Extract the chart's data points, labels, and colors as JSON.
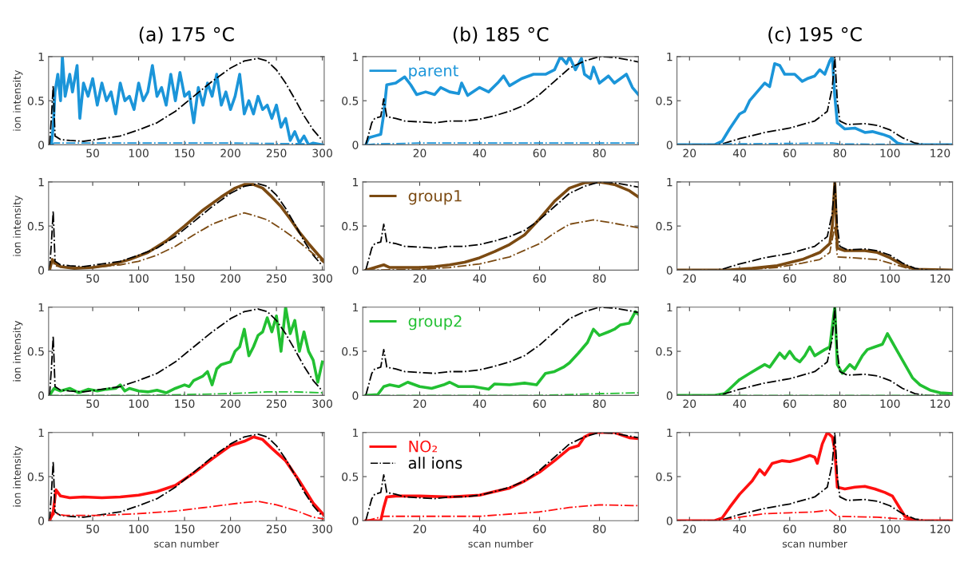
{
  "chart_data": [
    {
      "type": "line",
      "title": "(a) 175 °C",
      "ylabel": "ion intensity",
      "xlim": [
        2,
        302
      ],
      "xticks": [
        50,
        100,
        150,
        200,
        250,
        300
      ],
      "ylim": [
        0,
        1
      ],
      "yticks": [
        0,
        0.5,
        1
      ],
      "series": [
        {
          "color": "#1b95d9",
          "line_style": "solid",
          "x": [
            5,
            7,
            9,
            12,
            15,
            17,
            20,
            25,
            28,
            33,
            36,
            40,
            45,
            50,
            55,
            60,
            65,
            70,
            75,
            80,
            85,
            90,
            95,
            100,
            105,
            110,
            115,
            120,
            125,
            130,
            135,
            140,
            145,
            150,
            155,
            160,
            165,
            170,
            175,
            180,
            185,
            190,
            195,
            200,
            205,
            210,
            215,
            220,
            225,
            230,
            235,
            240,
            245,
            250,
            255,
            260,
            265,
            270,
            275,
            280,
            285,
            290,
            300
          ],
          "values": [
            0,
            0.2,
            0.6,
            0.8,
            0.5,
            1.0,
            0.55,
            0.8,
            0.6,
            0.9,
            0.3,
            0.7,
            0.55,
            0.75,
            0.45,
            0.7,
            0.5,
            0.6,
            0.35,
            0.7,
            0.5,
            0.55,
            0.4,
            0.7,
            0.5,
            0.6,
            0.9,
            0.55,
            0.65,
            0.45,
            0.8,
            0.5,
            0.82,
            0.55,
            0.6,
            0.25,
            0.65,
            0.45,
            0.7,
            0.55,
            0.8,
            0.45,
            0.6,
            0.4,
            0.55,
            0.8,
            0.35,
            0.5,
            0.35,
            0.55,
            0.4,
            0.45,
            0.3,
            0.45,
            0.2,
            0.3,
            0.05,
            0.15,
            0.02,
            0.1,
            0.0,
            0.02,
            0
          ]
        },
        {
          "color": "#000000",
          "line_style": "dashdot",
          "x": [
            3,
            5,
            7,
            9,
            15,
            25,
            40,
            60,
            80,
            100,
            120,
            140,
            160,
            180,
            200,
            215,
            230,
            240,
            250,
            260,
            270,
            280,
            290,
            300
          ],
          "values": [
            0,
            0.3,
            0.67,
            0.1,
            0.06,
            0.05,
            0.04,
            0.07,
            0.1,
            0.17,
            0.25,
            0.38,
            0.55,
            0.72,
            0.87,
            0.95,
            0.98,
            0.95,
            0.85,
            0.7,
            0.52,
            0.33,
            0.17,
            0.05
          ]
        },
        {
          "color": "#1b95d9",
          "line_style": "dashdot",
          "x": [
            5,
            8,
            100,
            200,
            300
          ],
          "values": [
            0,
            0.02,
            0.02,
            0.02,
            0.01
          ]
        }
      ]
    },
    {
      "type": "line",
      "title": "(b) 185 °C",
      "xlim": [
        1,
        93
      ],
      "xticks": [
        20,
        40,
        60,
        80
      ],
      "ylim": [
        0,
        1
      ],
      "yticks": [
        0,
        0.5,
        1
      ],
      "legend": "top left",
      "series": [
        {
          "name": "parent",
          "color": "#1b95d9",
          "line_style": "solid",
          "x": [
            2,
            3,
            5,
            7,
            8,
            9,
            12,
            15,
            17,
            19,
            22,
            25,
            27,
            30,
            33,
            34,
            36,
            40,
            43,
            46,
            48,
            50,
            54,
            58,
            62,
            65,
            67,
            69,
            70,
            72,
            74,
            75,
            77,
            78,
            80,
            83,
            85,
            87,
            89,
            91,
            93
          ],
          "values": [
            0,
            0.08,
            0.1,
            0.12,
            0.35,
            0.68,
            0.7,
            0.77,
            0.68,
            0.57,
            0.6,
            0.57,
            0.65,
            0.6,
            0.58,
            0.7,
            0.56,
            0.65,
            0.6,
            0.7,
            0.78,
            0.67,
            0.75,
            0.8,
            0.8,
            0.85,
            1.0,
            0.92,
            1.0,
            0.85,
            0.98,
            0.8,
            0.75,
            0.88,
            0.7,
            0.78,
            0.7,
            0.75,
            0.8,
            0.65,
            0.57
          ]
        },
        {
          "color": "#000000",
          "line_style": "dashdot",
          "x": [
            2,
            4,
            5,
            7,
            8,
            9,
            12,
            15,
            20,
            25,
            30,
            35,
            40,
            45,
            50,
            55,
            60,
            65,
            70,
            75,
            80,
            85,
            90,
            93
          ],
          "values": [
            0,
            0.25,
            0.3,
            0.32,
            0.52,
            0.32,
            0.3,
            0.27,
            0.26,
            0.25,
            0.27,
            0.27,
            0.29,
            0.33,
            0.38,
            0.45,
            0.57,
            0.72,
            0.87,
            0.95,
            1.0,
            0.99,
            0.96,
            0.94
          ]
        },
        {
          "color": "#1b95d9",
          "line_style": "dashdot",
          "x": [
            2,
            5,
            20,
            60,
            93
          ],
          "values": [
            0,
            0.01,
            0.02,
            0.02,
            0.02
          ]
        }
      ]
    },
    {
      "type": "line",
      "title": "(c) 195 °C",
      "xlim": [
        15,
        125
      ],
      "xticks": [
        20,
        40,
        60,
        80,
        100,
        120
      ],
      "ylim": [
        0,
        1
      ],
      "yticks": [
        0,
        0.5,
        1
      ],
      "series": [
        {
          "color": "#1b95d9",
          "line_style": "solid",
          "x": [
            15,
            30,
            33,
            36,
            40,
            42,
            44,
            47,
            50,
            52,
            54,
            56,
            58,
            62,
            65,
            67,
            70,
            72,
            74,
            76,
            77,
            78,
            79,
            82,
            86,
            90,
            93,
            97,
            100,
            103,
            106,
            125
          ],
          "values": [
            0,
            0,
            0.04,
            0.18,
            0.35,
            0.38,
            0.5,
            0.6,
            0.7,
            0.66,
            0.92,
            0.9,
            0.8,
            0.8,
            0.72,
            0.75,
            0.78,
            0.85,
            0.8,
            0.95,
            1.0,
            0.55,
            0.25,
            0.18,
            0.19,
            0.14,
            0.15,
            0.12,
            0.09,
            0.02,
            0,
            0
          ]
        },
        {
          "color": "#000000",
          "line_style": "dashdot",
          "x": [
            15,
            30,
            33,
            40,
            50,
            60,
            70,
            75,
            77,
            78,
            79,
            80,
            83,
            90,
            95,
            100,
            105,
            110,
            115,
            125
          ],
          "values": [
            0,
            0,
            0.01,
            0.07,
            0.14,
            0.19,
            0.27,
            0.38,
            0.65,
            1.0,
            0.5,
            0.27,
            0.23,
            0.24,
            0.22,
            0.17,
            0.08,
            0.02,
            0,
            0
          ]
        },
        {
          "color": "#1b95d9",
          "line_style": "dashdot",
          "x": [
            15,
            30,
            35,
            77,
            80,
            125
          ],
          "values": [
            0,
            0,
            0.01,
            0.02,
            0.01,
            0
          ]
        }
      ]
    },
    {
      "type": "line",
      "ylabel": "ion intensity",
      "xlim": [
        2,
        302
      ],
      "xticks": [
        50,
        100,
        150,
        200,
        250,
        300
      ],
      "ylim": [
        0,
        1
      ],
      "yticks": [
        0,
        0.5,
        1
      ],
      "series": [
        {
          "color": "#7b4a12",
          "line_style": "solid",
          "x": [
            3,
            6,
            9,
            15,
            30,
            50,
            70,
            90,
            110,
            130,
            150,
            170,
            190,
            205,
            215,
            225,
            235,
            245,
            255,
            265,
            275,
            285,
            295,
            302
          ],
          "values": [
            0,
            0.12,
            0.08,
            0.04,
            0.02,
            0.03,
            0.06,
            0.12,
            0.2,
            0.33,
            0.5,
            0.68,
            0.83,
            0.93,
            0.97,
            0.97,
            0.93,
            0.83,
            0.72,
            0.58,
            0.43,
            0.3,
            0.18,
            0.1
          ]
        },
        {
          "color": "#000000",
          "line_style": "dashdot",
          "x": [
            3,
            5,
            7,
            9,
            15,
            25,
            40,
            60,
            80,
            100,
            120,
            140,
            160,
            180,
            200,
            215,
            230,
            240,
            250,
            260,
            270,
            280,
            290,
            300
          ],
          "values": [
            0,
            0.3,
            0.67,
            0.1,
            0.06,
            0.05,
            0.04,
            0.07,
            0.1,
            0.17,
            0.25,
            0.38,
            0.55,
            0.72,
            0.87,
            0.95,
            0.98,
            0.95,
            0.85,
            0.7,
            0.52,
            0.33,
            0.17,
            0.05
          ]
        },
        {
          "color": "#7b4a12",
          "line_style": "dashdot",
          "x": [
            3,
            6,
            9,
            20,
            50,
            80,
            100,
            120,
            140,
            160,
            180,
            200,
            215,
            225,
            240,
            255,
            270,
            285,
            302
          ],
          "values": [
            0,
            0.1,
            0.05,
            0.03,
            0.03,
            0.06,
            0.1,
            0.17,
            0.27,
            0.4,
            0.52,
            0.6,
            0.65,
            0.62,
            0.57,
            0.47,
            0.36,
            0.23,
            0.08
          ]
        }
      ]
    },
    {
      "type": "line",
      "xlim": [
        1,
        93
      ],
      "xticks": [
        20,
        40,
        60,
        80
      ],
      "ylim": [
        0,
        1
      ],
      "yticks": [
        0,
        0.5,
        1
      ],
      "legend": "top left",
      "series": [
        {
          "name": "group1",
          "color": "#7b4a12",
          "line_style": "solid",
          "x": [
            2,
            4,
            8,
            10,
            20,
            25,
            30,
            35,
            40,
            45,
            50,
            55,
            60,
            65,
            70,
            75,
            80,
            85,
            90,
            93
          ],
          "values": [
            0,
            0.02,
            0.06,
            0.03,
            0.03,
            0.04,
            0.06,
            0.09,
            0.14,
            0.21,
            0.29,
            0.4,
            0.58,
            0.78,
            0.93,
            0.99,
            1.0,
            0.97,
            0.9,
            0.83
          ]
        },
        {
          "color": "#000000",
          "line_style": "dashdot",
          "x": [
            2,
            4,
            5,
            7,
            8,
            9,
            12,
            15,
            20,
            25,
            30,
            35,
            40,
            45,
            50,
            55,
            60,
            65,
            70,
            75,
            80,
            85,
            90,
            93
          ],
          "values": [
            0,
            0.25,
            0.3,
            0.32,
            0.52,
            0.32,
            0.3,
            0.27,
            0.26,
            0.25,
            0.27,
            0.27,
            0.29,
            0.33,
            0.38,
            0.45,
            0.57,
            0.72,
            0.87,
            0.95,
            1.0,
            0.99,
            0.96,
            0.94
          ]
        },
        {
          "color": "#7b4a12",
          "line_style": "dashdot",
          "x": [
            2,
            20,
            30,
            40,
            50,
            60,
            65,
            70,
            78,
            85,
            93
          ],
          "values": [
            0,
            0.01,
            0.03,
            0.07,
            0.15,
            0.3,
            0.42,
            0.52,
            0.57,
            0.53,
            0.48
          ]
        }
      ]
    },
    {
      "type": "line",
      "xlim": [
        15,
        125
      ],
      "xticks": [
        20,
        40,
        60,
        80,
        100,
        120
      ],
      "ylim": [
        0,
        1
      ],
      "yticks": [
        0,
        0.5,
        1
      ],
      "series": [
        {
          "color": "#7b4a12",
          "line_style": "solid",
          "x": [
            15,
            35,
            45,
            55,
            65,
            72,
            76,
            77,
            78,
            79,
            82,
            90,
            95,
            100,
            105,
            110,
            125
          ],
          "values": [
            0,
            0,
            0.02,
            0.05,
            0.12,
            0.2,
            0.3,
            0.5,
            1.0,
            0.25,
            0.22,
            0.22,
            0.2,
            0.14,
            0.06,
            0.01,
            0
          ]
        },
        {
          "color": "#000000",
          "line_style": "dashdot",
          "x": [
            15,
            30,
            33,
            40,
            50,
            60,
            70,
            75,
            77,
            78,
            79,
            80,
            83,
            90,
            95,
            100,
            105,
            110,
            115,
            125
          ],
          "values": [
            0,
            0,
            0.01,
            0.07,
            0.14,
            0.19,
            0.27,
            0.38,
            0.65,
            1.0,
            0.5,
            0.27,
            0.23,
            0.24,
            0.22,
            0.17,
            0.08,
            0.02,
            0,
            0
          ]
        },
        {
          "color": "#7b4a12",
          "line_style": "dashdot",
          "x": [
            15,
            40,
            55,
            65,
            72,
            76,
            78,
            79,
            85,
            95,
            100,
            106,
            110,
            125
          ],
          "values": [
            0,
            0,
            0.03,
            0.08,
            0.12,
            0.2,
            0.5,
            0.15,
            0.14,
            0.12,
            0.08,
            0.03,
            0,
            0
          ]
        }
      ]
    },
    {
      "type": "line",
      "ylabel": "ion intensity",
      "xlim": [
        2,
        302
      ],
      "xticks": [
        50,
        100,
        150,
        200,
        250,
        300
      ],
      "ylim": [
        0,
        1
      ],
      "yticks": [
        0,
        0.5,
        1
      ],
      "series": [
        {
          "color": "#22c032",
          "line_style": "solid",
          "x": [
            3,
            8,
            15,
            25,
            35,
            45,
            55,
            65,
            75,
            80,
            85,
            90,
            100,
            110,
            120,
            130,
            140,
            150,
            155,
            160,
            170,
            175,
            180,
            185,
            190,
            200,
            205,
            210,
            215,
            220,
            225,
            230,
            235,
            240,
            245,
            250,
            255,
            260,
            265,
            270,
            275,
            280,
            285,
            290,
            295,
            300
          ],
          "values": [
            0,
            0.08,
            0.05,
            0.08,
            0.03,
            0.07,
            0.05,
            0.07,
            0.08,
            0.12,
            0.05,
            0.08,
            0.05,
            0.04,
            0.06,
            0.03,
            0.08,
            0.12,
            0.1,
            0.17,
            0.22,
            0.27,
            0.12,
            0.3,
            0.35,
            0.38,
            0.5,
            0.55,
            0.75,
            0.45,
            0.55,
            0.68,
            0.72,
            0.88,
            0.72,
            0.9,
            0.5,
            1.0,
            0.7,
            0.85,
            0.5,
            0.72,
            0.5,
            0.4,
            0.15,
            0.38
          ]
        },
        {
          "color": "#000000",
          "line_style": "dashdot",
          "x": [
            3,
            5,
            7,
            9,
            15,
            25,
            40,
            60,
            80,
            100,
            120,
            140,
            160,
            180,
            200,
            215,
            230,
            240,
            250,
            260,
            270,
            280,
            290,
            300
          ],
          "values": [
            0,
            0.3,
            0.67,
            0.1,
            0.06,
            0.05,
            0.04,
            0.07,
            0.1,
            0.17,
            0.25,
            0.38,
            0.55,
            0.72,
            0.87,
            0.95,
            0.98,
            0.95,
            0.85,
            0.7,
            0.52,
            0.33,
            0.17,
            0.05
          ]
        },
        {
          "color": "#22c032",
          "line_style": "dashdot",
          "x": [
            3,
            100,
            150,
            200,
            240,
            270,
            300
          ],
          "values": [
            0,
            0,
            0.01,
            0.02,
            0.04,
            0.04,
            0.03
          ]
        }
      ]
    },
    {
      "type": "line",
      "xlim": [
        1,
        93
      ],
      "xticks": [
        20,
        40,
        60,
        80
      ],
      "ylim": [
        0,
        1
      ],
      "yticks": [
        0,
        0.5,
        1
      ],
      "legend": "top left",
      "series": [
        {
          "name": "group2",
          "color": "#22c032",
          "line_style": "solid",
          "x": [
            2,
            6,
            8,
            10,
            13,
            16,
            20,
            24,
            28,
            30,
            33,
            38,
            43,
            45,
            50,
            55,
            59,
            62,
            65,
            68,
            70,
            73,
            76,
            78,
            80,
            83,
            85,
            87,
            90,
            92,
            93
          ],
          "values": [
            0,
            0.01,
            0.1,
            0.12,
            0.1,
            0.15,
            0.1,
            0.08,
            0.12,
            0.15,
            0.1,
            0.1,
            0.07,
            0.13,
            0.12,
            0.14,
            0.12,
            0.25,
            0.27,
            0.32,
            0.37,
            0.48,
            0.6,
            0.75,
            0.68,
            0.72,
            0.75,
            0.8,
            0.82,
            0.95,
            0.92
          ]
        },
        {
          "color": "#000000",
          "line_style": "dashdot",
          "x": [
            2,
            4,
            5,
            7,
            8,
            9,
            12,
            15,
            20,
            25,
            30,
            35,
            40,
            45,
            50,
            55,
            60,
            65,
            70,
            75,
            80,
            85,
            90,
            93
          ],
          "values": [
            0,
            0.25,
            0.3,
            0.32,
            0.52,
            0.32,
            0.3,
            0.27,
            0.26,
            0.25,
            0.27,
            0.27,
            0.29,
            0.33,
            0.38,
            0.45,
            0.57,
            0.72,
            0.87,
            0.95,
            1.0,
            0.99,
            0.96,
            0.94
          ]
        },
        {
          "color": "#22c032",
          "line_style": "dashdot",
          "x": [
            2,
            60,
            80,
            93
          ],
          "values": [
            0,
            0,
            0.02,
            0.03
          ]
        }
      ]
    },
    {
      "type": "line",
      "xlim": [
        15,
        125
      ],
      "xticks": [
        20,
        40,
        60,
        80,
        100,
        120
      ],
      "ylim": [
        0,
        1
      ],
      "yticks": [
        0,
        0.5,
        1
      ],
      "series": [
        {
          "color": "#22c032",
          "line_style": "solid",
          "x": [
            15,
            30,
            34,
            37,
            40,
            44,
            47,
            50,
            52,
            54,
            56,
            58,
            60,
            62,
            64,
            66,
            68,
            70,
            74,
            76,
            78,
            79,
            81,
            84,
            86,
            89,
            91,
            94,
            97,
            99,
            101,
            103,
            106,
            109,
            112,
            116,
            120,
            125
          ],
          "values": [
            0,
            0,
            0.02,
            0.1,
            0.18,
            0.25,
            0.3,
            0.35,
            0.32,
            0.4,
            0.48,
            0.42,
            0.5,
            0.42,
            0.38,
            0.45,
            0.55,
            0.45,
            0.52,
            0.55,
            1.0,
            0.35,
            0.25,
            0.35,
            0.3,
            0.45,
            0.52,
            0.55,
            0.58,
            0.7,
            0.6,
            0.5,
            0.35,
            0.2,
            0.12,
            0.06,
            0.03,
            0.02
          ]
        },
        {
          "color": "#000000",
          "line_style": "dashdot",
          "x": [
            15,
            30,
            33,
            40,
            50,
            60,
            70,
            75,
            77,
            78,
            79,
            80,
            83,
            90,
            95,
            100,
            105,
            110,
            115,
            125
          ],
          "values": [
            0,
            0,
            0.01,
            0.07,
            0.14,
            0.19,
            0.27,
            0.38,
            0.65,
            1.0,
            0.5,
            0.27,
            0.23,
            0.24,
            0.22,
            0.17,
            0.08,
            0.02,
            0,
            0
          ]
        },
        {
          "color": "#22c032",
          "line_style": "dashdot",
          "x": [
            15,
            125
          ],
          "values": [
            0,
            0
          ]
        }
      ]
    },
    {
      "type": "line",
      "ylabel": "ion intensity",
      "xlabel": "scan number",
      "xlim": [
        2,
        302
      ],
      "xticks": [
        50,
        100,
        150,
        200,
        250,
        300
      ],
      "ylim": [
        0,
        1
      ],
      "yticks": [
        0,
        0.5,
        1
      ],
      "series": [
        {
          "color": "#ff1010",
          "line_style": "solid",
          "x": [
            3,
            7,
            10,
            15,
            25,
            40,
            60,
            80,
            100,
            120,
            140,
            160,
            180,
            200,
            215,
            225,
            235,
            245,
            260,
            275,
            290,
            302
          ],
          "values": [
            0,
            0.1,
            0.35,
            0.28,
            0.26,
            0.27,
            0.26,
            0.27,
            0.29,
            0.33,
            0.4,
            0.54,
            0.7,
            0.85,
            0.9,
            0.95,
            0.92,
            0.82,
            0.68,
            0.45,
            0.2,
            0.06
          ]
        },
        {
          "color": "#000000",
          "line_style": "dashdot",
          "x": [
            3,
            5,
            7,
            9,
            15,
            25,
            40,
            60,
            80,
            100,
            120,
            140,
            160,
            180,
            200,
            215,
            230,
            240,
            250,
            260,
            270,
            280,
            290,
            300
          ],
          "values": [
            0,
            0.3,
            0.67,
            0.1,
            0.06,
            0.05,
            0.04,
            0.07,
            0.1,
            0.17,
            0.25,
            0.38,
            0.55,
            0.72,
            0.87,
            0.95,
            0.98,
            0.95,
            0.85,
            0.7,
            0.52,
            0.33,
            0.17,
            0.05
          ]
        },
        {
          "color": "#ff1010",
          "line_style": "dashdot",
          "x": [
            3,
            8,
            20,
            60,
            100,
            140,
            180,
            210,
            230,
            250,
            270,
            290,
            302
          ],
          "values": [
            0,
            0.08,
            0.06,
            0.06,
            0.08,
            0.11,
            0.16,
            0.2,
            0.22,
            0.18,
            0.12,
            0.04,
            0.02
          ]
        }
      ]
    },
    {
      "type": "line",
      "xlabel": "scan number",
      "xlim": [
        1,
        93
      ],
      "xticks": [
        20,
        40,
        60,
        80
      ],
      "ylim": [
        0,
        1
      ],
      "yticks": [
        0,
        0.5,
        1
      ],
      "legend": "top left",
      "series": [
        {
          "name": "NO₂",
          "color": "#ff1010",
          "line_style": "solid",
          "x": [
            2,
            7,
            8,
            9,
            12,
            20,
            30,
            40,
            45,
            50,
            55,
            60,
            65,
            70,
            73,
            75,
            78,
            85,
            90,
            93
          ],
          "values": [
            0,
            0,
            0.15,
            0.27,
            0.28,
            0.28,
            0.27,
            0.29,
            0.33,
            0.37,
            0.45,
            0.55,
            0.68,
            0.82,
            0.85,
            0.95,
            1.0,
            1.0,
            0.94,
            0.93
          ]
        },
        {
          "name": "all ions",
          "color": "#000000",
          "line_style": "dashdot",
          "x": [
            2,
            4,
            5,
            7,
            8,
            9,
            12,
            15,
            20,
            25,
            30,
            35,
            40,
            45,
            50,
            55,
            60,
            65,
            70,
            75,
            80,
            85,
            90,
            93
          ],
          "values": [
            0,
            0.25,
            0.3,
            0.32,
            0.52,
            0.32,
            0.3,
            0.27,
            0.26,
            0.25,
            0.27,
            0.27,
            0.29,
            0.33,
            0.38,
            0.45,
            0.57,
            0.72,
            0.87,
            0.95,
            1.0,
            0.99,
            0.96,
            0.94
          ]
        },
        {
          "color": "#ff1010",
          "line_style": "dashdot",
          "x": [
            2,
            8,
            20,
            40,
            60,
            70,
            80,
            93
          ],
          "values": [
            0,
            0.05,
            0.05,
            0.05,
            0.1,
            0.15,
            0.18,
            0.17
          ]
        }
      ]
    },
    {
      "type": "line",
      "xlabel": "scan number",
      "xlim": [
        15,
        125
      ],
      "xticks": [
        20,
        40,
        60,
        80,
        100,
        120
      ],
      "ylim": [
        0,
        1
      ],
      "yticks": [
        0,
        0.5,
        1
      ],
      "series": [
        {
          "color": "#ff1010",
          "line_style": "solid",
          "x": [
            15,
            30,
            33,
            36,
            40,
            45,
            48,
            50,
            53,
            57,
            60,
            64,
            68,
            70,
            71,
            73,
            75,
            77,
            78,
            79,
            82,
            86,
            90,
            94,
            98,
            101,
            104,
            106,
            110,
            125
          ],
          "values": [
            0,
            0,
            0.03,
            0.15,
            0.3,
            0.45,
            0.58,
            0.52,
            0.65,
            0.68,
            0.67,
            0.7,
            0.74,
            0.72,
            0.65,
            0.87,
            1.0,
            0.95,
            0.8,
            0.38,
            0.36,
            0.38,
            0.39,
            0.36,
            0.32,
            0.28,
            0.14,
            0.05,
            0,
            0
          ]
        },
        {
          "color": "#000000",
          "line_style": "dashdot",
          "x": [
            15,
            30,
            33,
            40,
            50,
            60,
            70,
            75,
            77,
            78,
            79,
            80,
            83,
            90,
            95,
            100,
            105,
            110,
            115,
            125
          ],
          "values": [
            0,
            0,
            0.01,
            0.07,
            0.14,
            0.19,
            0.27,
            0.38,
            0.65,
            1.0,
            0.5,
            0.27,
            0.23,
            0.24,
            0.22,
            0.17,
            0.08,
            0.02,
            0,
            0
          ]
        },
        {
          "color": "#ff1010",
          "line_style": "dashdot",
          "x": [
            15,
            32,
            40,
            50,
            60,
            70,
            76,
            79,
            95,
            105,
            110,
            125
          ],
          "values": [
            0,
            0,
            0.04,
            0.08,
            0.09,
            0.1,
            0.12,
            0.05,
            0.04,
            0.02,
            0,
            0
          ]
        }
      ]
    }
  ]
}
